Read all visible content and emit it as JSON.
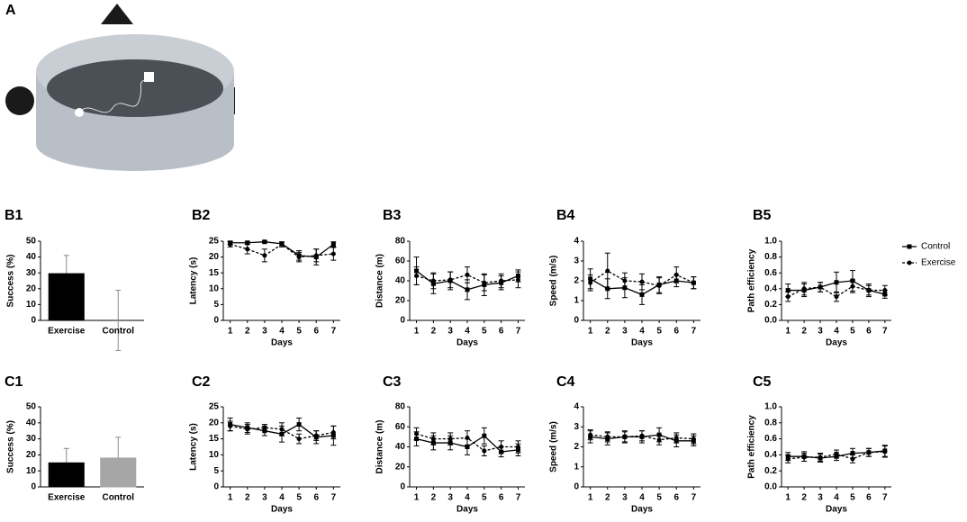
{
  "figure": {
    "panel_label": "A"
  },
  "chart_data": [
    {
      "type": "bar",
      "panel": "B1",
      "ylabel": "Success (%)",
      "categories": [
        "Exercise",
        "Control"
      ],
      "values": [
        29.5,
        0
      ],
      "errors": [
        11.5,
        19
      ],
      "colors": [
        "#000000",
        "#ffffff"
      ],
      "error_color": "#888888",
      "ylim": [
        0,
        50
      ],
      "yticks": [
        0,
        10,
        20,
        30,
        40,
        50
      ]
    },
    {
      "type": "line",
      "panel": "B2",
      "ylabel": "Latency (s)",
      "xlabel": "Days",
      "x": [
        1,
        2,
        3,
        4,
        5,
        6,
        7
      ],
      "xlim": [
        0.6,
        7.4
      ],
      "ylim": [
        0,
        25
      ],
      "yticks": [
        0,
        5,
        10,
        15,
        20,
        25
      ],
      "series": [
        {
          "color": "#000000",
          "marker": "square",
          "dash": false,
          "values": [
            24.5,
            24.5,
            24.8,
            24.2,
            20.5,
            20,
            24
          ],
          "errors": [
            0.5,
            0.5,
            0.3,
            0.5,
            1.5,
            2.5,
            0.8
          ]
        },
        {
          "color": "#000000",
          "marker": "circle",
          "dash": true,
          "values": [
            24,
            22.5,
            20.5,
            24,
            20,
            20.5,
            21
          ],
          "errors": [
            0.8,
            1.5,
            2,
            0.8,
            1.5,
            2,
            2
          ]
        }
      ]
    },
    {
      "type": "line",
      "panel": "B3",
      "ylabel": "Distance (m)",
      "xlabel": "Days",
      "x": [
        1,
        2,
        3,
        4,
        5,
        6,
        7
      ],
      "xlim": [
        0.6,
        7.4
      ],
      "ylim": [
        0,
        80
      ],
      "yticks": [
        0,
        20,
        40,
        60,
        80
      ],
      "series": [
        {
          "color": "#000000",
          "marker": "square",
          "dash": false,
          "values": [
            50,
            37,
            40,
            31,
            36,
            38,
            45
          ],
          "errors": [
            14,
            10,
            9,
            10,
            11,
            7,
            6
          ]
        },
        {
          "color": "#000000",
          "marker": "circle",
          "dash": true,
          "values": [
            45,
            40,
            41,
            46,
            38,
            40,
            41
          ],
          "errors": [
            9,
            8,
            8,
            8,
            8,
            7,
            8
          ]
        }
      ]
    },
    {
      "type": "line",
      "panel": "B4",
      "ylabel": "Speed (m/s)",
      "xlabel": "Days",
      "x": [
        1,
        2,
        3,
        4,
        5,
        6,
        7
      ],
      "xlim": [
        0.6,
        7.4
      ],
      "ylim": [
        0,
        4
      ],
      "yticks": [
        0,
        1,
        2,
        3,
        4
      ],
      "series": [
        {
          "color": "#000000",
          "marker": "square",
          "dash": false,
          "values": [
            2.1,
            1.6,
            1.65,
            1.3,
            1.8,
            2.0,
            1.9
          ],
          "errors": [
            0.5,
            0.5,
            0.5,
            0.5,
            0.4,
            0.3,
            0.3
          ]
        },
        {
          "color": "#000000",
          "marker": "circle",
          "dash": true,
          "values": [
            1.9,
            2.5,
            2.0,
            1.95,
            1.75,
            2.3,
            1.9
          ],
          "errors": [
            0.4,
            0.9,
            0.4,
            0.4,
            0.4,
            0.4,
            0.3
          ]
        }
      ]
    },
    {
      "type": "line",
      "panel": "B5",
      "ylabel": "Path efficiency",
      "xlabel": "Days",
      "x": [
        1,
        2,
        3,
        4,
        5,
        6,
        7
      ],
      "xlim": [
        0.6,
        7.4
      ],
      "ylim": [
        0,
        1.0
      ],
      "yticks": [
        {
          "value": 0,
          "label": "0.0"
        },
        0.2,
        0.4,
        0.6,
        0.8,
        {
          "value": 1.0,
          "label": "1.0"
        }
      ],
      "series": [
        {
          "name": "Control",
          "color": "#000000",
          "marker": "square",
          "dash": false,
          "values": [
            0.38,
            0.38,
            0.42,
            0.48,
            0.5,
            0.38,
            0.33
          ],
          "errors": [
            0.08,
            0.08,
            0.06,
            0.13,
            0.13,
            0.08,
            0.05
          ]
        },
        {
          "name": "Exercise",
          "color": "#000000",
          "marker": "circle",
          "dash": true,
          "values": [
            0.3,
            0.4,
            0.42,
            0.3,
            0.43,
            0.38,
            0.38
          ],
          "errors": [
            0.06,
            0.08,
            0.06,
            0.06,
            0.08,
            0.06,
            0.06
          ]
        }
      ]
    },
    {
      "type": "bar",
      "panel": "C1",
      "ylabel": "Success (%)",
      "categories": [
        "Exercise",
        "Control"
      ],
      "values": [
        15,
        18
      ],
      "errors": [
        9,
        13
      ],
      "colors": [
        "#000000",
        "#a6a6a6"
      ],
      "error_color": "#888888",
      "ylim": [
        0,
        50
      ],
      "yticks": [
        0,
        10,
        20,
        30,
        40,
        50
      ]
    },
    {
      "type": "line",
      "panel": "C2",
      "ylabel": "Latency (s)",
      "xlabel": "Days",
      "x": [
        1,
        2,
        3,
        4,
        5,
        6,
        7
      ],
      "xlim": [
        0.6,
        7.4
      ],
      "ylim": [
        0,
        25
      ],
      "yticks": [
        0,
        5,
        10,
        15,
        20,
        25
      ],
      "series": [
        {
          "color": "#000000",
          "marker": "square",
          "dash": false,
          "values": [
            19.5,
            18.5,
            17.5,
            16.5,
            19.5,
            15.5,
            16
          ],
          "errors": [
            2,
            1.5,
            1.5,
            2.5,
            2,
            2,
            3
          ]
        },
        {
          "color": "#000000",
          "marker": "circle",
          "dash": true,
          "values": [
            19,
            18,
            18.5,
            18,
            15,
            16,
            17
          ],
          "errors": [
            1.5,
            1.5,
            1,
            2,
            1.5,
            1.5,
            2
          ]
        }
      ]
    },
    {
      "type": "line",
      "panel": "C3",
      "ylabel": "Distance (m)",
      "xlabel": "Days",
      "x": [
        1,
        2,
        3,
        4,
        5,
        6,
        7
      ],
      "xlim": [
        0.6,
        7.4
      ],
      "ylim": [
        0,
        80
      ],
      "yticks": [
        0,
        20,
        40,
        60,
        80
      ],
      "series": [
        {
          "color": "#000000",
          "marker": "square",
          "dash": false,
          "values": [
            48,
            44,
            44,
            40,
            51,
            35,
            37
          ],
          "errors": [
            7,
            7,
            7,
            8,
            8,
            5,
            6
          ]
        },
        {
          "color": "#000000",
          "marker": "circle",
          "dash": true,
          "values": [
            53,
            48,
            48,
            49,
            36,
            40,
            40
          ],
          "errors": [
            6,
            6,
            6,
            7,
            5,
            6,
            6
          ]
        }
      ]
    },
    {
      "type": "line",
      "panel": "C4",
      "ylabel": "Speed (m/s)",
      "xlabel": "Days",
      "x": [
        1,
        2,
        3,
        4,
        5,
        6,
        7
      ],
      "xlim": [
        0.6,
        7.4
      ],
      "ylim": [
        0,
        4
      ],
      "yticks": [
        0,
        1,
        2,
        3,
        4
      ],
      "series": [
        {
          "color": "#000000",
          "marker": "square",
          "dash": false,
          "values": [
            2.5,
            2.4,
            2.5,
            2.5,
            2.6,
            2.3,
            2.3
          ],
          "errors": [
            0.3,
            0.3,
            0.3,
            0.3,
            0.35,
            0.3,
            0.25
          ]
        },
        {
          "color": "#000000",
          "marker": "circle",
          "dash": true,
          "values": [
            2.6,
            2.5,
            2.5,
            2.55,
            2.35,
            2.45,
            2.4
          ],
          "errors": [
            0.25,
            0.25,
            0.25,
            0.25,
            0.25,
            0.25,
            0.25
          ]
        }
      ]
    },
    {
      "type": "line",
      "panel": "C5",
      "ylabel": "Path efficiency",
      "xlabel": "Days",
      "x": [
        1,
        2,
        3,
        4,
        5,
        6,
        7
      ],
      "xlim": [
        0.6,
        7.4
      ],
      "ylim": [
        0,
        1.0
      ],
      "yticks": [
        {
          "value": 0,
          "label": "0.0"
        },
        0.2,
        0.4,
        0.6,
        0.8,
        {
          "value": 1.0,
          "label": "1.0"
        }
      ],
      "series": [
        {
          "color": "#000000",
          "marker": "square",
          "dash": false,
          "values": [
            0.38,
            0.38,
            0.36,
            0.38,
            0.42,
            0.43,
            0.45
          ],
          "errors": [
            0.05,
            0.06,
            0.05,
            0.05,
            0.06,
            0.05,
            0.07
          ]
        },
        {
          "color": "#000000",
          "marker": "circle",
          "dash": true,
          "values": [
            0.35,
            0.37,
            0.37,
            0.41,
            0.35,
            0.43,
            0.44
          ],
          "errors": [
            0.05,
            0.05,
            0.05,
            0.05,
            0.05,
            0.05,
            0.07
          ]
        }
      ]
    }
  ]
}
